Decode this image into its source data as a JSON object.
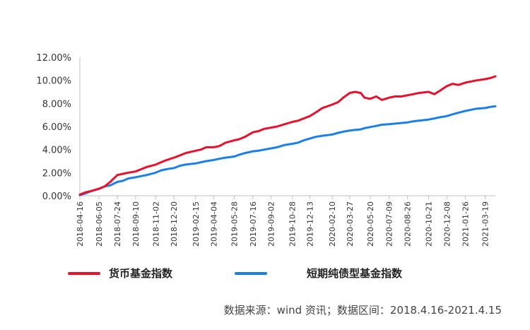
{
  "colors": {
    "series_0": "#e8112d",
    "series_1": "#1a7fe6",
    "axis": "#bfbfbf",
    "text": "#333333"
  },
  "source": "数据来源：wind 资讯；数据区间：2018.4.16-2021.4.15",
  "chart_data": {
    "type": "line",
    "grid": false,
    "legend_position": "bottom",
    "ylim": [
      0,
      12
    ],
    "y_unit": "%",
    "y_ticks": [
      "0.00%",
      "2.00%",
      "4.00%",
      "6.00%",
      "8.00%",
      "10.00%",
      "12.00%"
    ],
    "x_ticks": [
      "2018-04-16",
      "2018-06-05",
      "2018-07-24",
      "2018-09-10",
      "2018-11-02",
      "2018-12-20",
      "2019-02-15",
      "2019-04-04",
      "2019-05-28",
      "2019-07-16",
      "2019-09-02",
      "2019-10-28",
      "2019-12-13",
      "2020-02-10",
      "2020-03-27",
      "2020-05-20",
      "2020-07-09",
      "2020-08-26",
      "2020-10-21",
      "2020-12-08",
      "2021-01-26",
      "2021-03-19"
    ],
    "x": [
      "2018-04-16",
      "2018-05-01",
      "2018-05-15",
      "2018-06-05",
      "2018-06-20",
      "2018-07-05",
      "2018-07-24",
      "2018-08-08",
      "2018-08-22",
      "2018-09-10",
      "2018-09-25",
      "2018-10-10",
      "2018-11-02",
      "2018-11-16",
      "2018-12-01",
      "2018-12-20",
      "2019-01-05",
      "2019-01-20",
      "2019-02-15",
      "2019-03-01",
      "2019-03-15",
      "2019-04-04",
      "2019-04-18",
      "2019-05-05",
      "2019-05-28",
      "2019-06-10",
      "2019-06-25",
      "2019-07-16",
      "2019-07-31",
      "2019-08-15",
      "2019-09-02",
      "2019-09-18",
      "2019-10-08",
      "2019-10-28",
      "2019-11-12",
      "2019-11-27",
      "2019-12-13",
      "2019-12-28",
      "2020-01-15",
      "2020-02-10",
      "2020-02-25",
      "2020-03-10",
      "2020-03-27",
      "2020-04-10",
      "2020-04-25",
      "2020-05-05",
      "2020-05-20",
      "2020-06-05",
      "2020-06-20",
      "2020-07-09",
      "2020-07-25",
      "2020-08-10",
      "2020-08-26",
      "2020-09-10",
      "2020-09-25",
      "2020-10-21",
      "2020-11-05",
      "2020-11-20",
      "2020-12-08",
      "2020-12-23",
      "2021-01-08",
      "2021-01-26",
      "2021-02-10",
      "2021-02-25",
      "2021-03-19",
      "2021-04-02",
      "2021-04-15"
    ],
    "series": [
      {
        "name": "货币基金指数",
        "values": [
          0.1,
          0.3,
          0.4,
          0.6,
          0.8,
          1.2,
          1.8,
          1.9,
          2.0,
          2.1,
          2.3,
          2.5,
          2.7,
          2.9,
          3.1,
          3.3,
          3.5,
          3.7,
          3.9,
          4.0,
          4.2,
          4.2,
          4.3,
          4.6,
          4.8,
          4.9,
          5.1,
          5.5,
          5.6,
          5.8,
          5.9,
          6.0,
          6.2,
          6.4,
          6.5,
          6.7,
          6.9,
          7.2,
          7.6,
          7.9,
          8.1,
          8.5,
          8.9,
          9.0,
          8.9,
          8.5,
          8.4,
          8.6,
          8.3,
          8.5,
          8.6,
          8.6,
          8.7,
          8.8,
          8.9,
          9.0,
          8.8,
          9.1,
          9.5,
          9.7,
          9.6,
          9.8,
          9.9,
          10.0,
          10.1,
          10.2,
          10.35
        ]
      },
      {
        "name": "短期纯债型基金指数",
        "values": [
          0.05,
          0.2,
          0.4,
          0.6,
          0.8,
          0.9,
          1.2,
          1.3,
          1.5,
          1.6,
          1.7,
          1.8,
          2.0,
          2.2,
          2.3,
          2.4,
          2.6,
          2.7,
          2.8,
          2.9,
          3.0,
          3.1,
          3.2,
          3.3,
          3.4,
          3.55,
          3.7,
          3.85,
          3.9,
          4.0,
          4.1,
          4.2,
          4.4,
          4.5,
          4.6,
          4.8,
          4.95,
          5.1,
          5.2,
          5.3,
          5.45,
          5.55,
          5.65,
          5.7,
          5.75,
          5.85,
          5.95,
          6.05,
          6.15,
          6.2,
          6.25,
          6.3,
          6.35,
          6.45,
          6.5,
          6.6,
          6.7,
          6.8,
          6.9,
          7.05,
          7.2,
          7.35,
          7.45,
          7.55,
          7.6,
          7.7,
          7.75
        ]
      }
    ]
  }
}
